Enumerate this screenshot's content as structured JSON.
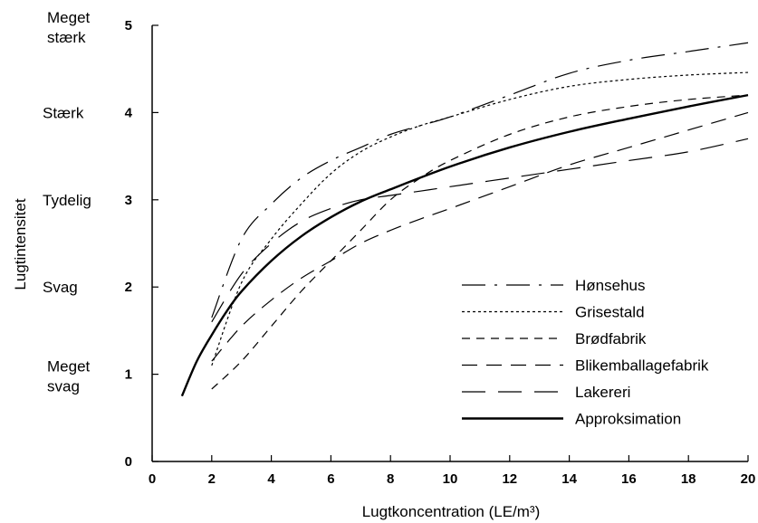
{
  "chart_data": {
    "type": "line",
    "title": "",
    "xlabel": "Lugtkoncentration (LE/m³)",
    "ylabel": "Lugtintensitet",
    "xlim": [
      0,
      20
    ],
    "ylim": [
      0,
      5
    ],
    "x_ticks": [
      0,
      2,
      4,
      6,
      8,
      10,
      12,
      14,
      16,
      18,
      20
    ],
    "y_ticks": [
      0,
      1,
      2,
      3,
      4,
      5
    ],
    "y_categories": [
      {
        "lines": [
          "Meget",
          "stærk"
        ],
        "at": 5
      },
      {
        "lines": [
          "Stærk"
        ],
        "at": 4
      },
      {
        "lines": [
          "Tydelig"
        ],
        "at": 3
      },
      {
        "lines": [
          "Svag"
        ],
        "at": 2
      },
      {
        "lines": [
          "Meget",
          "svag"
        ],
        "at": 1
      }
    ],
    "legend_position": "bottom-right",
    "grid": false,
    "series": [
      {
        "name": "Hønsehus",
        "style": "dashdot",
        "color": "#000000",
        "x": [
          2,
          3,
          4,
          5,
          6,
          7,
          8,
          9,
          10,
          12,
          14,
          16,
          18,
          20
        ],
        "y": [
          1.65,
          2.55,
          2.95,
          3.25,
          3.45,
          3.6,
          3.75,
          3.85,
          3.95,
          4.2,
          4.45,
          4.6,
          4.7,
          4.8
        ]
      },
      {
        "name": "Grisestald",
        "style": "dotted",
        "color": "#000000",
        "x": [
          2,
          3,
          4,
          5,
          6,
          7,
          8,
          9,
          10,
          12,
          14,
          16,
          18,
          20
        ],
        "y": [
          1.1,
          2.05,
          2.55,
          2.95,
          3.3,
          3.55,
          3.72,
          3.85,
          3.95,
          4.15,
          4.3,
          4.38,
          4.43,
          4.46
        ]
      },
      {
        "name": "Brødfabrik",
        "style": "short-dash",
        "color": "#000000",
        "x": [
          2,
          3,
          4,
          5,
          6,
          7,
          8,
          9,
          10,
          12,
          14,
          16,
          18,
          20
        ],
        "y": [
          0.83,
          1.15,
          1.55,
          1.95,
          2.3,
          2.65,
          3.0,
          3.25,
          3.45,
          3.75,
          3.95,
          4.07,
          4.15,
          4.2
        ]
      },
      {
        "name": "Blikemballagefabrik",
        "style": "medium-dash",
        "color": "#000000",
        "x": [
          2,
          3,
          4,
          5,
          6,
          7,
          8,
          9,
          10,
          12,
          14,
          16,
          18,
          20
        ],
        "y": [
          1.15,
          1.55,
          1.85,
          2.1,
          2.3,
          2.5,
          2.65,
          2.78,
          2.9,
          3.15,
          3.4,
          3.6,
          3.8,
          4.0
        ]
      },
      {
        "name": "Lakereri",
        "style": "long-dash",
        "color": "#000000",
        "x": [
          2,
          3,
          4,
          5,
          6,
          7,
          8,
          9,
          10,
          12,
          14,
          16,
          18,
          20
        ],
        "y": [
          1.6,
          2.15,
          2.5,
          2.75,
          2.9,
          3.0,
          3.05,
          3.1,
          3.15,
          3.25,
          3.35,
          3.45,
          3.55,
          3.7
        ]
      },
      {
        "name": "Approksimation",
        "style": "solid",
        "color": "#000000",
        "x": [
          1,
          1.5,
          2,
          2.5,
          3,
          4,
          5,
          6,
          7,
          8,
          10,
          12,
          14,
          16,
          18,
          20
        ],
        "y": [
          0.75,
          1.15,
          1.45,
          1.72,
          1.95,
          2.3,
          2.58,
          2.8,
          2.98,
          3.12,
          3.38,
          3.6,
          3.78,
          3.93,
          4.07,
          4.2
        ]
      }
    ]
  }
}
